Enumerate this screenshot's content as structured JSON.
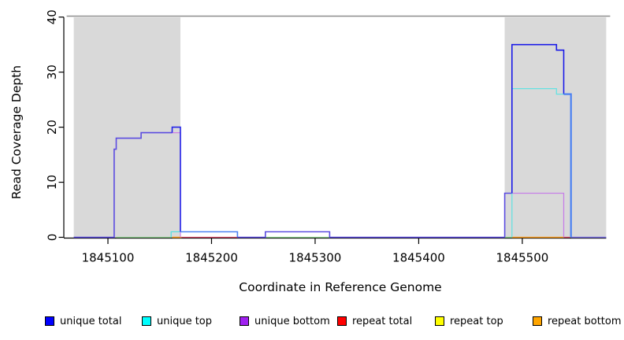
{
  "figure": {
    "y_axis_label": "Read Coverage Depth",
    "x_axis_label": "Coordinate in Reference Genome"
  },
  "chart_data": {
    "type": "line",
    "subtype": "step-coverage",
    "title": "",
    "xlabel": "Coordinate in Reference Genome",
    "ylabel": "Read Coverage Depth",
    "xlim": [
      1845067,
      1845581
    ],
    "ylim": [
      0,
      40
    ],
    "x_ticks": [
      1845100,
      1845200,
      1845300,
      1845400,
      1845500
    ],
    "y_ticks": [
      0,
      10,
      20,
      30,
      40
    ],
    "grid": "off",
    "legend_position": "bottom",
    "shaded_regions": [
      {
        "x0": 1845067,
        "x1": 1845170,
        "color": "#d9d9d9"
      },
      {
        "x0": 1845483,
        "x1": 1845581,
        "color": "#d9d9d9"
      }
    ],
    "top_boundary_value": 40,
    "series": [
      {
        "name": "unique total",
        "color": "#0000FF",
        "steps": [
          [
            1845067,
            0
          ],
          [
            1845106,
            16
          ],
          [
            1845108,
            18
          ],
          [
            1845132,
            19
          ],
          [
            1845162,
            20
          ],
          [
            1845170,
            1
          ],
          [
            1845225,
            0
          ],
          [
            1845252,
            1
          ],
          [
            1845314,
            0
          ],
          [
            1845483,
            8
          ],
          [
            1845490,
            35
          ],
          [
            1845533,
            34
          ],
          [
            1845540,
            26
          ],
          [
            1845547,
            0
          ],
          [
            1845581,
            0
          ]
        ]
      },
      {
        "name": "unique top",
        "color": "#00FFFF",
        "steps": [
          [
            1845067,
            0
          ],
          [
            1845162,
            1
          ],
          [
            1845225,
            0
          ],
          [
            1845490,
            27
          ],
          [
            1845533,
            26
          ],
          [
            1845547,
            0
          ],
          [
            1845581,
            0
          ]
        ]
      },
      {
        "name": "unique bottom",
        "color": "#A020F0",
        "steps": [
          [
            1845067,
            0
          ],
          [
            1845106,
            16
          ],
          [
            1845108,
            18
          ],
          [
            1845132,
            19
          ],
          [
            1845170,
            0
          ],
          [
            1845483,
            8
          ],
          [
            1845540,
            0
          ],
          [
            1845581,
            0
          ]
        ]
      },
      {
        "name": "repeat total",
        "color": "#FF0000",
        "steps": [
          [
            1845067,
            0
          ],
          [
            1845581,
            0
          ]
        ]
      },
      {
        "name": "repeat top",
        "color": "#FFFF00",
        "steps": [
          [
            1845067,
            0
          ],
          [
            1845581,
            0
          ]
        ]
      },
      {
        "name": "repeat bottom",
        "color": "#FFA500",
        "steps": [
          [
            1845067,
            0
          ],
          [
            1845581,
            0
          ]
        ]
      }
    ],
    "visual_strokes": [
      {
        "color": "#93d793",
        "w": 1.3,
        "points": [
          [
            1845108,
            0
          ],
          [
            1845161,
            0
          ]
        ]
      },
      {
        "color": "#ffa224",
        "w": 1.6,
        "points": [
          [
            1845162,
            0
          ],
          [
            1845171,
            0
          ]
        ]
      },
      {
        "color": "#e0506e",
        "w": 1.3,
        "points": [
          [
            1845171,
            0
          ],
          [
            1845225,
            0
          ]
        ]
      },
      {
        "color": "#93d793",
        "w": 1.3,
        "points": [
          [
            1845252,
            0
          ],
          [
            1845314,
            0
          ]
        ]
      },
      {
        "color": "#93d793",
        "w": 1.3,
        "points": [
          [
            1845483,
            0
          ],
          [
            1845490,
            0
          ]
        ]
      },
      {
        "color": "#ffa224",
        "w": 1.6,
        "points": [
          [
            1845490,
            0
          ],
          [
            1845540,
            0
          ]
        ]
      },
      {
        "color": "#e0506e",
        "w": 1.3,
        "points": [
          [
            1845540,
            0
          ],
          [
            1845546,
            0
          ]
        ]
      },
      {
        "color": "#7f74ea",
        "w": 1.6,
        "points": [
          [
            1845547,
            0
          ],
          [
            1845581,
            0
          ]
        ]
      },
      {
        "color": "#55dede",
        "w": 1.3,
        "points": [
          [
            1845161,
            0
          ],
          [
            1845161,
            1
          ],
          [
            1845170,
            1
          ]
        ]
      },
      {
        "color": "#cf7fe8",
        "w": 1.2,
        "points": [
          [
            1845162,
            19
          ],
          [
            1845170,
            19
          ],
          [
            1845170,
            0
          ]
        ]
      },
      {
        "color": "#5b4be0",
        "w": 1.6,
        "points": [
          [
            1845067,
            0
          ],
          [
            1845106,
            0
          ],
          [
            1845106,
            16
          ],
          [
            1845108,
            16
          ],
          [
            1845108,
            18
          ],
          [
            1845132,
            18
          ],
          [
            1845132,
            19
          ],
          [
            1845162,
            19
          ]
        ]
      },
      {
        "color": "#2222e8",
        "w": 1.6,
        "points": [
          [
            1845162,
            19
          ],
          [
            1845162,
            20
          ],
          [
            1845170,
            20
          ],
          [
            1845170,
            1
          ]
        ]
      },
      {
        "color": "#4a80f2",
        "w": 1.6,
        "points": [
          [
            1845170,
            1
          ],
          [
            1845225,
            1
          ],
          [
            1845225,
            0
          ]
        ]
      },
      {
        "color": "#5b4be0",
        "w": 1.6,
        "points": [
          [
            1845225,
            0
          ],
          [
            1845252,
            0
          ],
          [
            1845252,
            1
          ],
          [
            1845314,
            1
          ],
          [
            1845314,
            0
          ],
          [
            1845483,
            0
          ]
        ]
      },
      {
        "color": "#5b4be0",
        "w": 1.6,
        "points": [
          [
            1845483,
            0
          ],
          [
            1845483,
            8
          ],
          [
            1845490,
            8
          ]
        ]
      },
      {
        "color": "#c77fe8",
        "w": 1.3,
        "points": [
          [
            1845490,
            8
          ],
          [
            1845540,
            8
          ],
          [
            1845540,
            0
          ]
        ]
      },
      {
        "color": "#66e2e2",
        "w": 1.3,
        "points": [
          [
            1845490,
            0
          ],
          [
            1845490,
            27
          ],
          [
            1845533,
            27
          ],
          [
            1845533,
            26
          ],
          [
            1845540,
            26
          ]
        ]
      },
      {
        "color": "#1b1be8",
        "w": 1.6,
        "points": [
          [
            1845490,
            8
          ],
          [
            1845490,
            35
          ],
          [
            1845533,
            35
          ],
          [
            1845533,
            34
          ],
          [
            1845540,
            34
          ],
          [
            1845540,
            26
          ]
        ]
      },
      {
        "color": "#4a80f2",
        "w": 2.2,
        "points": [
          [
            1845540,
            26
          ],
          [
            1845547,
            26
          ],
          [
            1845547,
            0
          ]
        ]
      }
    ]
  },
  "legend": {
    "items": [
      {
        "label": "unique total",
        "color": "#0000FF"
      },
      {
        "label": "unique top",
        "color": "#00FFFF"
      },
      {
        "label": "unique bottom",
        "color": "#A020F0"
      },
      {
        "label": "repeat total",
        "color": "#FF0000"
      },
      {
        "label": "repeat top",
        "color": "#FFFF00"
      },
      {
        "label": "repeat bottom",
        "color": "#FFA500"
      }
    ]
  },
  "colors": {
    "shaded_region": "#d9d9d9",
    "axis": "#000000",
    "top_line": "#8c8c8c",
    "background": "#ffffff"
  }
}
